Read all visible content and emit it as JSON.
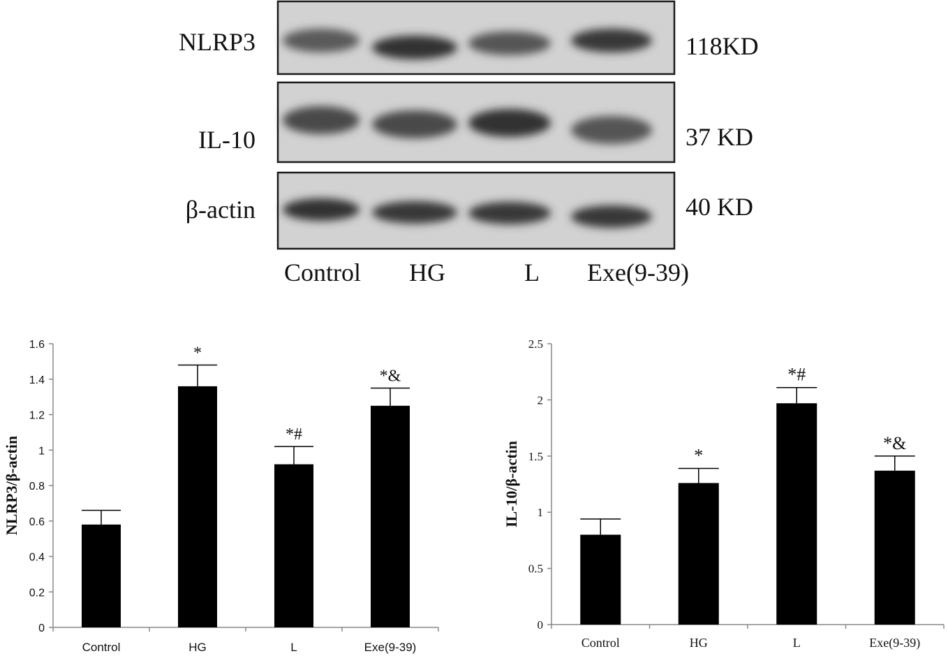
{
  "blot": {
    "lanes": [
      "Control",
      "HG",
      "L",
      "Exe(9-39)"
    ],
    "rows": [
      {
        "protein": "NLRP3",
        "size": "118KD",
        "intensity": [
          0.55,
          0.9,
          0.6,
          0.85
        ]
      },
      {
        "protein": "IL-10",
        "size": "37 KD",
        "intensity": [
          0.7,
          0.7,
          0.9,
          0.6
        ]
      },
      {
        "protein": "β-actin",
        "size": "40 KD",
        "intensity": [
          0.9,
          0.85,
          0.85,
          0.85
        ]
      }
    ]
  },
  "chart_data": [
    {
      "type": "bar",
      "categories": [
        "Control",
        "HG",
        "L",
        "Exe(9-39)"
      ],
      "values": [
        0.58,
        1.36,
        0.92,
        1.25
      ],
      "errors": [
        0.08,
        0.12,
        0.1,
        0.1
      ],
      "annotations": [
        "",
        "*",
        "*#",
        "*&"
      ],
      "ylabel": "NLRP3/β-actin",
      "ylim": [
        0,
        1.6
      ],
      "yticks": [
        "0",
        "0.2",
        "0.4",
        "0.6",
        "0.8",
        "1",
        "1.2",
        "1.4",
        "1.6"
      ],
      "ytick_values": [
        0,
        0.2,
        0.4,
        0.6,
        0.8,
        1.0,
        1.2,
        1.4,
        1.6
      ],
      "grid": false,
      "bar_color": "#000000"
    },
    {
      "type": "bar",
      "categories": [
        "Control",
        "HG",
        "L",
        "Exe(9-39)"
      ],
      "values": [
        0.8,
        1.26,
        1.97,
        1.37
      ],
      "errors": [
        0.14,
        0.13,
        0.14,
        0.13
      ],
      "annotations": [
        "",
        "*",
        "*#",
        "*&"
      ],
      "ylabel": "IL-10/β-actin",
      "ylim": [
        0,
        2.5
      ],
      "yticks": [
        "0",
        "0.5",
        "1",
        "1.5",
        "2",
        "2.5"
      ],
      "ytick_values": [
        0,
        0.5,
        1,
        1.5,
        2,
        2.5
      ],
      "grid": false,
      "bar_color": "#000000"
    }
  ]
}
